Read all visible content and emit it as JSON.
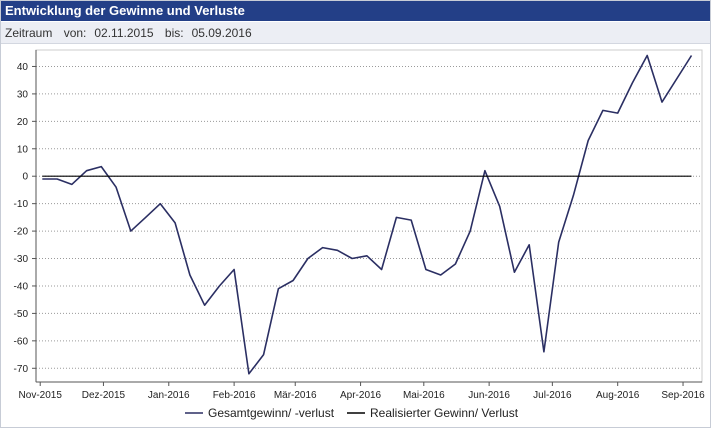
{
  "header": {
    "title": "Entwicklung der Gewinne und Verluste",
    "period_label": "Zeitraum",
    "from_label": "von:",
    "from_value": "02.11.2015",
    "to_label": "bis:",
    "to_value": "05.09.2016"
  },
  "colors": {
    "title_bg": "#233f87",
    "series_gesamt": "#2b2f63",
    "series_realisiert": "#000000",
    "grid": "#9a9a9a"
  },
  "chart_data": {
    "type": "line",
    "title": "Entwicklung der Gewinne und Verluste",
    "xlabel": "",
    "ylabel": "",
    "grid": true,
    "legend_position": "bottom",
    "ylim": [
      -75,
      46
    ],
    "xlim": [
      "2015-10-30",
      "2016-09-10"
    ],
    "y_ticks": [
      40,
      30,
      20,
      10,
      0,
      -10,
      -20,
      -30,
      -40,
      -50,
      -60,
      -70
    ],
    "x_ticks": [
      {
        "date": "2015-11-01",
        "label": "Nov-2015"
      },
      {
        "date": "2015-12-01",
        "label": "Dez-2015"
      },
      {
        "date": "2016-01-01",
        "label": "Jan-2016"
      },
      {
        "date": "2016-02-01",
        "label": "Feb-2016"
      },
      {
        "date": "2016-03-01",
        "label": "Mär-2016"
      },
      {
        "date": "2016-04-01",
        "label": "Apr-2016"
      },
      {
        "date": "2016-05-01",
        "label": "Mai-2016"
      },
      {
        "date": "2016-06-01",
        "label": "Jun-2016"
      },
      {
        "date": "2016-07-01",
        "label": "Jul-2016"
      },
      {
        "date": "2016-08-01",
        "label": "Aug-2016"
      },
      {
        "date": "2016-09-01",
        "label": "Sep-2016"
      }
    ],
    "series": [
      {
        "name": "Gesamtgewinn/ -verlust",
        "points": [
          {
            "x": "2015-11-02",
            "y": -1
          },
          {
            "x": "2015-11-09",
            "y": -1
          },
          {
            "x": "2015-11-16",
            "y": -3
          },
          {
            "x": "2015-11-23",
            "y": 2
          },
          {
            "x": "2015-11-30",
            "y": 3.5
          },
          {
            "x": "2015-12-07",
            "y": -4
          },
          {
            "x": "2015-12-14",
            "y": -20
          },
          {
            "x": "2015-12-21",
            "y": -15
          },
          {
            "x": "2015-12-28",
            "y": -10
          },
          {
            "x": "2016-01-04",
            "y": -17
          },
          {
            "x": "2016-01-11",
            "y": -36
          },
          {
            "x": "2016-01-18",
            "y": -47
          },
          {
            "x": "2016-01-25",
            "y": -40
          },
          {
            "x": "2016-02-01",
            "y": -34
          },
          {
            "x": "2016-02-08",
            "y": -72
          },
          {
            "x": "2016-02-15",
            "y": -65
          },
          {
            "x": "2016-02-22",
            "y": -41
          },
          {
            "x": "2016-02-29",
            "y": -38
          },
          {
            "x": "2016-03-07",
            "y": -30
          },
          {
            "x": "2016-03-14",
            "y": -26
          },
          {
            "x": "2016-03-21",
            "y": -27
          },
          {
            "x": "2016-03-28",
            "y": -30
          },
          {
            "x": "2016-04-04",
            "y": -29
          },
          {
            "x": "2016-04-11",
            "y": -34
          },
          {
            "x": "2016-04-18",
            "y": -15
          },
          {
            "x": "2016-04-25",
            "y": -16
          },
          {
            "x": "2016-05-02",
            "y": -34
          },
          {
            "x": "2016-05-09",
            "y": -36
          },
          {
            "x": "2016-05-16",
            "y": -32
          },
          {
            "x": "2016-05-23",
            "y": -20
          },
          {
            "x": "2016-05-30",
            "y": 2
          },
          {
            "x": "2016-06-06",
            "y": -11
          },
          {
            "x": "2016-06-13",
            "y": -35
          },
          {
            "x": "2016-06-20",
            "y": -25
          },
          {
            "x": "2016-06-27",
            "y": -64
          },
          {
            "x": "2016-07-04",
            "y": -24
          },
          {
            "x": "2016-07-11",
            "y": -7
          },
          {
            "x": "2016-07-18",
            "y": 13
          },
          {
            "x": "2016-07-25",
            "y": 24
          },
          {
            "x": "2016-08-01",
            "y": 23
          },
          {
            "x": "2016-08-08",
            "y": 34
          },
          {
            "x": "2016-08-15",
            "y": 44
          },
          {
            "x": "2016-08-22",
            "y": 27
          },
          {
            "x": "2016-09-05",
            "y": 44
          }
        ]
      },
      {
        "name": "Realisierter Gewinn/ Verlust",
        "points": [
          {
            "x": "2015-11-02",
            "y": 0
          },
          {
            "x": "2016-09-05",
            "y": 0
          }
        ]
      }
    ]
  }
}
